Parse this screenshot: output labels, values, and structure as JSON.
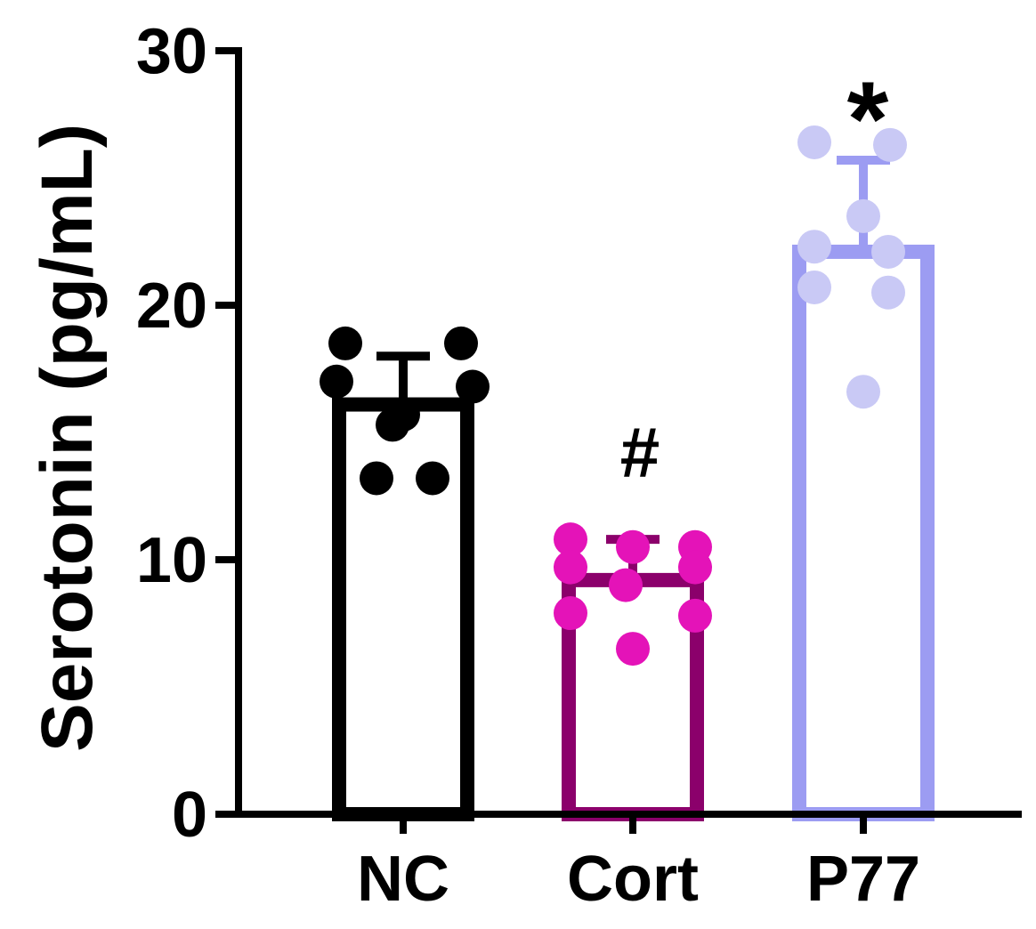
{
  "chart_data": {
    "type": "bar",
    "title": "",
    "xlabel": "",
    "ylabel": "Serotonin (pg/mL)",
    "ylim": [
      0,
      30
    ],
    "yticks": [
      0,
      10,
      20,
      30
    ],
    "grid": false,
    "categories": [
      "NC",
      "Cort",
      "P77"
    ],
    "series": [
      {
        "values": [
          16.1,
          9.2,
          22.1
        ],
        "error_upper": [
          18.0,
          10.8,
          25.7
        ],
        "colors": [
          "#000000",
          "#8b006b",
          "#9c9cf2"
        ],
        "point_colors": [
          "#000000",
          "#e413b8",
          "#c9c9f5"
        ]
      }
    ],
    "points": [
      [
        18.5,
        18.5,
        17.0,
        16.8,
        15.7,
        15.3,
        13.2,
        13.2
      ],
      [
        10.8,
        10.5,
        10.5,
        9.7,
        9.7,
        9.0,
        7.9,
        7.8,
        6.5
      ],
      [
        26.4,
        26.3,
        23.5,
        22.3,
        22.1,
        20.7,
        20.5,
        16.6
      ]
    ],
    "annotations": [
      {
        "category": "Cort",
        "text": "#"
      },
      {
        "category": "P77",
        "text": "*"
      }
    ]
  }
}
